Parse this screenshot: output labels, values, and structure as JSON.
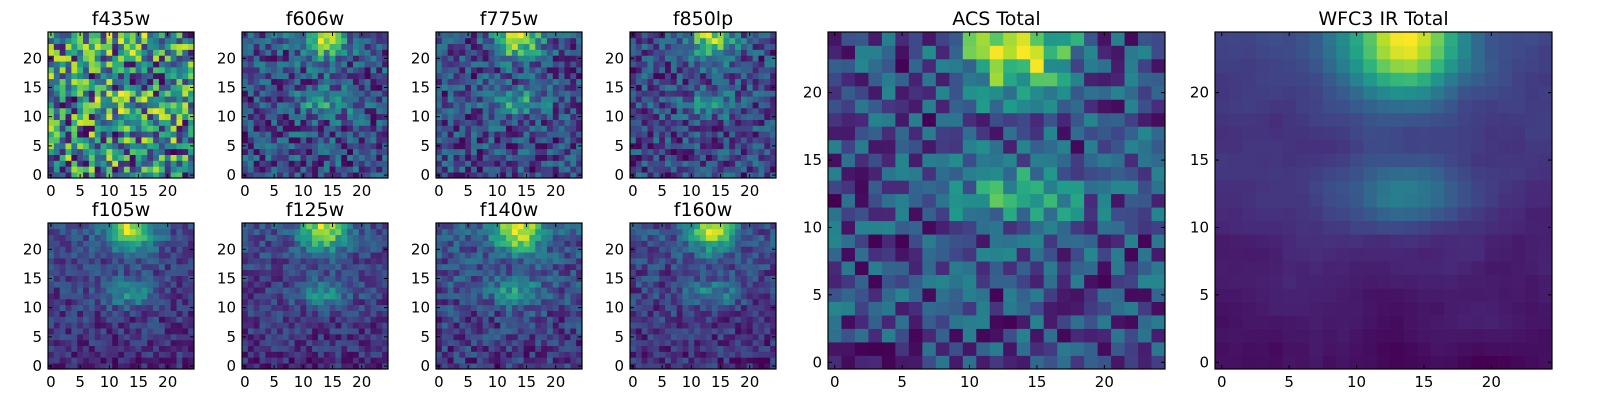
{
  "chart_data": {
    "type": "heatmap",
    "colormap": "viridis",
    "grid": false,
    "panels": [
      {
        "title": "f435w",
        "image": "f435w",
        "xlim": [
          0,
          25
        ],
        "ylim": [
          0,
          25
        ],
        "xticks": [
          "0",
          "5",
          "10",
          "15",
          "20"
        ],
        "yticks": [
          "0",
          "5",
          "10",
          "15",
          "20"
        ]
      },
      {
        "title": "f606w",
        "image": "f606w",
        "xlim": [
          0,
          25
        ],
        "ylim": [
          0,
          25
        ],
        "xticks": [
          "0",
          "5",
          "10",
          "15",
          "20"
        ],
        "yticks": [
          "0",
          "5",
          "10",
          "15",
          "20"
        ]
      },
      {
        "title": "f775w",
        "image": "f775w",
        "xlim": [
          0,
          25
        ],
        "ylim": [
          0,
          25
        ],
        "xticks": [
          "0",
          "5",
          "10",
          "15",
          "20"
        ],
        "yticks": [
          "0",
          "5",
          "10",
          "15",
          "20"
        ]
      },
      {
        "title": "f850lp",
        "image": "f850lp",
        "xlim": [
          0,
          25
        ],
        "ylim": [
          0,
          25
        ],
        "xticks": [
          "0",
          "5",
          "10",
          "15",
          "20"
        ],
        "yticks": [
          "0",
          "5",
          "10",
          "15",
          "20"
        ]
      },
      {
        "title": "f105w",
        "image": "f105w",
        "xlim": [
          0,
          25
        ],
        "ylim": [
          0,
          25
        ],
        "xticks": [
          "0",
          "5",
          "10",
          "15",
          "20"
        ],
        "yticks": [
          "0",
          "5",
          "10",
          "15",
          "20"
        ]
      },
      {
        "title": "f125w",
        "image": "f125w",
        "xlim": [
          0,
          25
        ],
        "ylim": [
          0,
          25
        ],
        "xticks": [
          "0",
          "5",
          "10",
          "15",
          "20"
        ],
        "yticks": [
          "0",
          "5",
          "10",
          "15",
          "20"
        ]
      },
      {
        "title": "f140w",
        "image": "f140w",
        "xlim": [
          0,
          25
        ],
        "ylim": [
          0,
          25
        ],
        "xticks": [
          "0",
          "5",
          "10",
          "15",
          "20"
        ],
        "yticks": [
          "0",
          "5",
          "10",
          "15",
          "20"
        ]
      },
      {
        "title": "f160w",
        "image": "f160w",
        "xlim": [
          0,
          25
        ],
        "ylim": [
          0,
          25
        ],
        "xticks": [
          "0",
          "5",
          "10",
          "15",
          "20"
        ],
        "yticks": [
          "0",
          "5",
          "10",
          "15",
          "20"
        ]
      },
      {
        "title": "ACS Total",
        "image": "acs",
        "xlim": [
          0,
          25
        ],
        "ylim": [
          0,
          25
        ],
        "xticks": [
          "0",
          "5",
          "10",
          "15",
          "20"
        ],
        "yticks": [
          "0",
          "5",
          "10",
          "15",
          "20"
        ]
      },
      {
        "title": "WFC3 IR Total",
        "image": "ir",
        "xlim": [
          0,
          25
        ],
        "ylim": [
          0,
          25
        ],
        "xticks": [
          "0",
          "5",
          "10",
          "15",
          "20"
        ],
        "yticks": [
          "0",
          "5",
          "10",
          "15",
          "20"
        ]
      }
    ]
  }
}
